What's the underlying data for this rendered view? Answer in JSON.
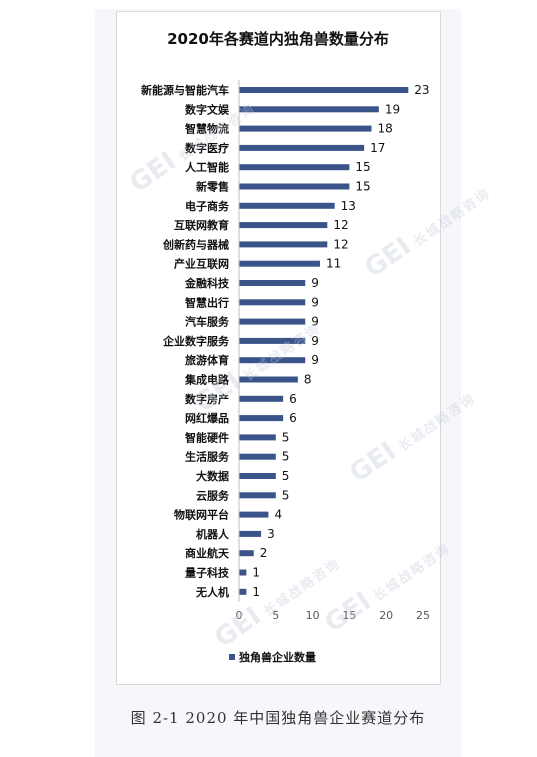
{
  "caption": "图 2-1 2020 年中国独角兽企业赛道分布",
  "watermark": {
    "mark": "GEI",
    "text": "长城战略咨询"
  },
  "colors": {
    "bar": "#3a5389",
    "label": "#111111",
    "axis": "#595959",
    "frame": "#d9d9d9"
  },
  "chart_data": {
    "type": "bar",
    "orientation": "horizontal",
    "title": "2020年各赛道内独角兽数量分布",
    "categories": [
      "新能源与智能汽车",
      "数字文娱",
      "智慧物流",
      "数字医疗",
      "人工智能",
      "新零售",
      "电子商务",
      "互联网教育",
      "创新药与器械",
      "产业互联网",
      "金融科技",
      "智慧出行",
      "汽车服务",
      "企业数字服务",
      "旅游体育",
      "集成电路",
      "数字房产",
      "网红爆品",
      "智能硬件",
      "生活服务",
      "大数据",
      "云服务",
      "物联网平台",
      "机器人",
      "商业航天",
      "量子科技",
      "无人机"
    ],
    "series": [
      {
        "name": "独角兽企业数量",
        "values": [
          23,
          19,
          18,
          17,
          15,
          15,
          13,
          12,
          12,
          11,
          9,
          9,
          9,
          9,
          9,
          8,
          6,
          6,
          5,
          5,
          5,
          5,
          4,
          3,
          2,
          1,
          1
        ]
      }
    ],
    "xlim": [
      0,
      25
    ],
    "xticks": [
      "0",
      "5",
      "10",
      "15",
      "20",
      "25"
    ],
    "grid": false,
    "data_labels": true,
    "legend_position": "bottom"
  }
}
